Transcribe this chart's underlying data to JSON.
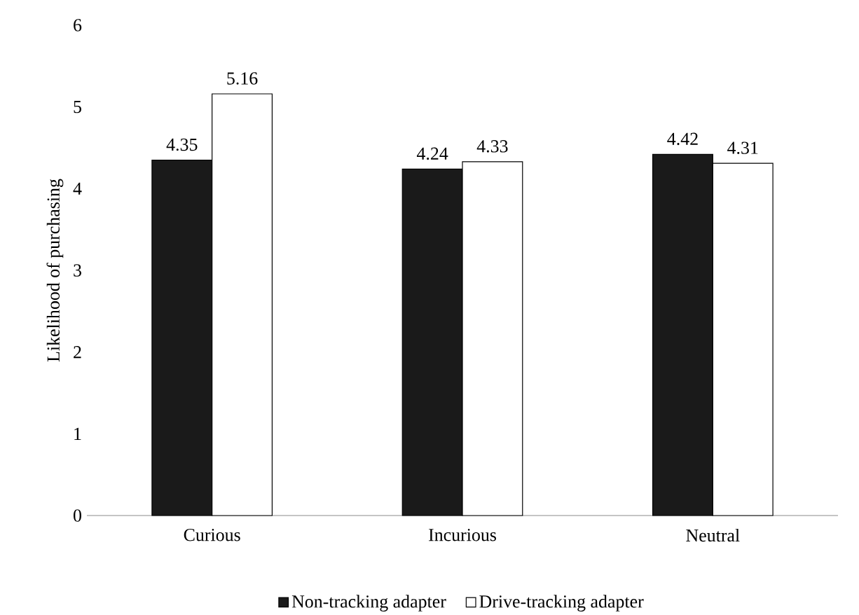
{
  "chart_data": {
    "type": "bar",
    "ylabel": "Likelihood of purchasing",
    "categories": [
      "Curious",
      "Incurious",
      "Neutral"
    ],
    "series": [
      {
        "name": "Non-tracking adapter",
        "color": "#1a1a1a",
        "values": [
          4.35,
          4.24,
          4.42
        ]
      },
      {
        "name": "Drive-tracking adapter",
        "color": "#ffffff",
        "values": [
          5.16,
          4.33,
          4.31
        ]
      }
    ],
    "ylim": [
      0,
      6
    ],
    "yticks": [
      0,
      1,
      2,
      3,
      4,
      5,
      6
    ],
    "grid": false,
    "legend": "bottom",
    "data_labels": true
  }
}
